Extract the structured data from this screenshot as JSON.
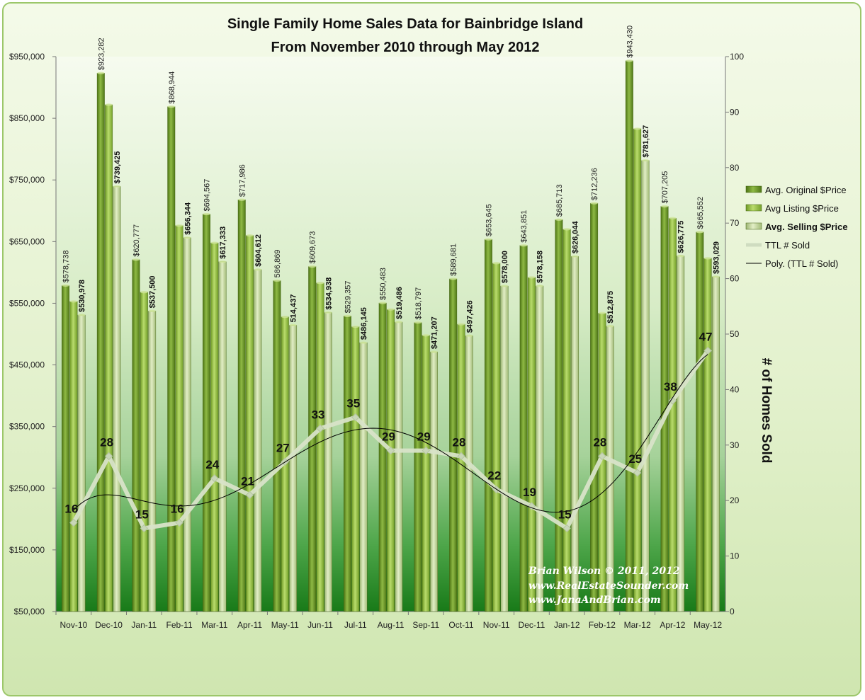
{
  "chart_data": {
    "type": "bar",
    "title_line1": "Single Family Home Sales Data for Bainbridge Island",
    "title_line2": "From November 2010 through May 2012",
    "categories": [
      "Nov-10",
      "Dec-10",
      "Jan-11",
      "Feb-11",
      "Mar-11",
      "Apr-11",
      "May-11",
      "Jun-11",
      "Jul-11",
      "Aug-11",
      "Sep-11",
      "Oct-11",
      "Nov-11",
      "Dec-11",
      "Jan-12",
      "Feb-12",
      "Mar-12",
      "Apr-12",
      "May-12"
    ],
    "series": [
      {
        "name": "Avg. Original $Price",
        "color": "#6f9a2a",
        "values": [
          578738,
          923282,
          620777,
          868944,
          694567,
          717986,
          586869,
          609673,
          529357,
          550483,
          518797,
          589681,
          653645,
          643851,
          685713,
          712236,
          943430,
          707205,
          665552
        ],
        "labels": [
          "$578,738",
          "$923,282",
          "$620,777",
          "$868,944",
          "$694,567",
          "$717,986",
          "586,869",
          "$609,673",
          "$529,357",
          "$550,483",
          "$518,797",
          "$589,681",
          "$653,645",
          "$643,851",
          "$685,713",
          "$712,236",
          "$943,430",
          "$707,205",
          "$665,552"
        ]
      },
      {
        "name": "Avg Listing $Price",
        "color": "#9cc24a",
        "values": [
          553000,
          872000,
          568000,
          676000,
          648000,
          660000,
          528000,
          583000,
          512000,
          540000,
          498000,
          516000,
          615000,
          592000,
          670000,
          534000,
          833000,
          688000,
          623000
        ]
      },
      {
        "name": "Avg. Selling $Price",
        "color": "#c8dc98",
        "values": [
          530978,
          739425,
          537500,
          656344,
          617333,
          604612,
          514437,
          534938,
          486145,
          519486,
          471207,
          497426,
          578000,
          578158,
          626044,
          512875,
          781627,
          626775,
          593029
        ],
        "labels": [
          "$530,978",
          "$739,425",
          "$537,500",
          "$656,344",
          "$617,333",
          "$604,612",
          "514,437",
          "$534,938",
          "$486,145",
          "$519,486",
          "$471,207",
          "$497,426",
          "$578,000",
          "$578,158",
          "$626,044",
          "$512,875",
          "$781,627",
          "$626,775",
          "$593,029"
        ]
      },
      {
        "name": "TTL # Sold",
        "color": "#d4e0c4",
        "axis": "right",
        "values": [
          16,
          28,
          15,
          16,
          24,
          21,
          27,
          33,
          35,
          29,
          29,
          28,
          22,
          19,
          15,
          28,
          25,
          38,
          47
        ]
      },
      {
        "name": "Poly. (TTL # Sold)",
        "color": "#000000",
        "axis": "right",
        "trendline": true
      }
    ],
    "ylim_left": [
      50000,
      950000
    ],
    "y_ticks_left": [
      "$50,000",
      "$150,000",
      "$250,000",
      "$350,000",
      "$450,000",
      "$550,000",
      "$650,000",
      "$750,000",
      "$850,000",
      "$950,000"
    ],
    "ylim_right": [
      0,
      100
    ],
    "y_ticks_right": [
      "0",
      "10",
      "20",
      "30",
      "40",
      "50",
      "60",
      "70",
      "80",
      "90",
      "100"
    ],
    "ylabel_right": "# of Homes Sold",
    "legend_position": "right",
    "grid": false
  },
  "credits": [
    "Brian Wilson  © 2011, 2012",
    "www.RealEstateSounder.com",
    "www.JanaAndBrian.com"
  ],
  "colors": {
    "plot_top": "#ffffff",
    "plot_bottom": "#1f7d1f",
    "frame": "#9cc76a"
  }
}
